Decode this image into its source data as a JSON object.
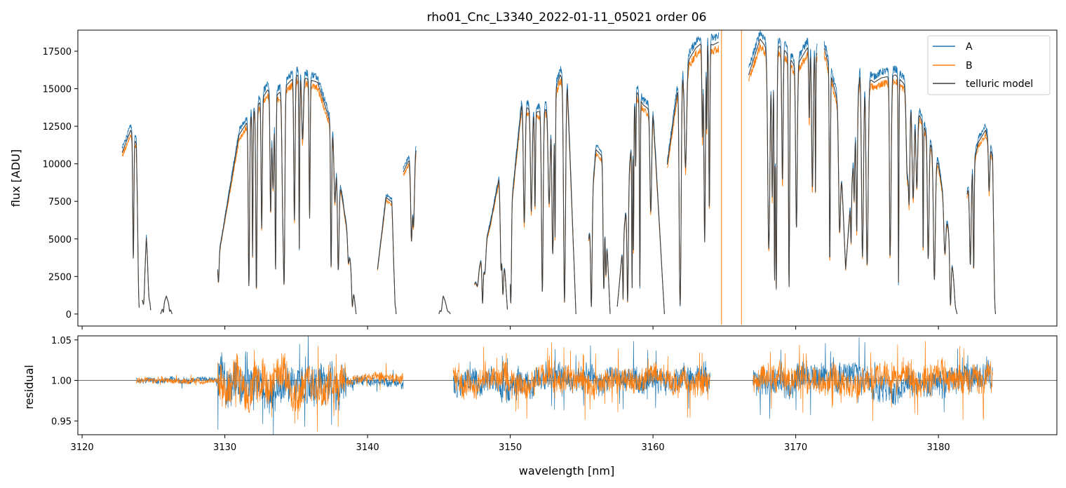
{
  "chart_data": [
    {
      "type": "line",
      "title": "rho01_Cnc_L3340_2022-01-11_05021  order 06",
      "xlabel": "",
      "ylabel": "flux [ADU]",
      "xlim": [
        3119.7,
        3188.3
      ],
      "ylim": [
        -800,
        18900
      ],
      "yticks": [
        0,
        2500,
        5000,
        7500,
        10000,
        12500,
        15000,
        17500
      ],
      "ytick_labels": [
        "0",
        "2500",
        "5000",
        "7500",
        "10000",
        "12500",
        "15000",
        "17500"
      ],
      "xticks": [
        3120,
        3130,
        3140,
        3150,
        3160,
        3170,
        3180
      ],
      "grid": false,
      "legend": "top-right",
      "series": [
        {
          "name": "A",
          "color": "#1f77b4",
          "lw": 0.9,
          "x_range": [
            3122.8,
            3184.9
          ]
        },
        {
          "name": "B",
          "color": "#ff7f0e",
          "lw": 0.9,
          "x_range": [
            3122.8,
            3185.0
          ]
        },
        {
          "name": "telluric model",
          "color": "#3f3f3f",
          "lw": 1.1,
          "x_range": [
            3122.8,
            3184.8
          ]
        }
      ],
      "continuum_segments": [
        {
          "x": [
            3122.8,
            3123.4,
            3123.8,
            3124.0
          ],
          "y": [
            10800,
            12300,
            11400,
            1500
          ]
        },
        {
          "x": [
            3124.2,
            3124.5,
            3124.8
          ],
          "y": [
            1200,
            5200,
            300
          ]
        },
        {
          "x": [
            3125.5,
            3125.9,
            3126.3
          ],
          "y": [
            0,
            1200,
            0
          ]
        },
        {
          "x": [
            3129.5,
            3131.0,
            3133.0,
            3133.5,
            3135.0,
            3136.5,
            3137.5,
            3138.5,
            3139.2
          ],
          "y": [
            3500,
            12000,
            15000,
            14500,
            16000,
            15500,
            12500,
            6000,
            0
          ]
        },
        {
          "x": [
            3140.7,
            3141.3,
            3141.7,
            3142.0
          ],
          "y": [
            3000,
            7800,
            7500,
            0
          ]
        },
        {
          "x": [
            3142.5,
            3143.0,
            3143.4
          ],
          "y": [
            9500,
            10500,
            11000
          ]
        },
        {
          "x": [
            3145.0,
            3145.3,
            3145.8
          ],
          "y": [
            0,
            1200,
            0
          ]
        },
        {
          "x": [
            3147.5,
            3148.6,
            3149.2,
            3149.8
          ],
          "y": [
            2000,
            6000,
            9000,
            300
          ]
        },
        {
          "x": [
            3150.0,
            3150.8,
            3151.8,
            3152.8,
            3153.5,
            3154.0,
            3154.6
          ],
          "y": [
            6500,
            14000,
            13500,
            13800,
            16000,
            15200,
            0
          ]
        },
        {
          "x": [
            3155.5,
            3156.0,
            3156.5,
            3157.0
          ],
          "y": [
            5000,
            11000,
            10500,
            0
          ]
        },
        {
          "x": [
            3157.5,
            3158.2,
            3158.8,
            3159.3,
            3160.0,
            3160.8
          ],
          "y": [
            500,
            8000,
            15000,
            14000,
            13500,
            0
          ]
        },
        {
          "x": [
            3161.0,
            3161.8,
            3162.5,
            3163.0,
            3163.6,
            3164.2,
            3164.6
          ],
          "y": [
            10000,
            15500,
            17000,
            17800,
            18300,
            18000,
            18200
          ]
        },
        {
          "x": [
            3166.7,
            3167.5,
            3168.2,
            3169.0,
            3170.0,
            3171.0,
            3171.5
          ],
          "y": [
            16000,
            18400,
            17500,
            18000,
            16500,
            18100,
            17400
          ]
        },
        {
          "x": [
            3172.0,
            3173.0,
            3173.5,
            3174.5,
            3175.5,
            3176.0,
            3177.0,
            3178.0,
            3179.0,
            3180.0,
            3180.8,
            3181.3
          ],
          "y": [
            17800,
            14000,
            3000,
            16200,
            15500,
            15800,
            16000,
            15000,
            12500,
            10000,
            5000,
            0
          ]
        },
        {
          "x": [
            3182.0,
            3182.8,
            3183.3,
            3183.8,
            3184.0
          ],
          "y": [
            8000,
            11500,
            12300,
            10500,
            0
          ]
        }
      ],
      "absorption_lines_note": ""
    },
    {
      "type": "line",
      "title": "",
      "xlabel": "wavelength [nm]",
      "ylabel": "residual",
      "xlim": [
        3119.7,
        3188.3
      ],
      "ylim": [
        0.933,
        1.055
      ],
      "yticks": [
        0.95,
        1.0,
        1.05
      ],
      "ytick_labels": [
        "0.95",
        "1.00",
        "1.05"
      ],
      "xticks": [
        3120,
        3130,
        3140,
        3150,
        3160,
        3170,
        3180
      ],
      "xtick_labels": [
        "3120",
        "3130",
        "3140",
        "3150",
        "3160",
        "3170",
        "3180"
      ],
      "reference_line": 1.0,
      "series": [
        {
          "name": "A",
          "color": "#1f77b4"
        },
        {
          "name": "B",
          "color": "#ff7f0e"
        }
      ],
      "residual_segments": [
        {
          "x_range": [
            3123.8,
            3129.5
          ],
          "amplitude": 0.008
        },
        {
          "x_range": [
            3129.5,
            3138.5
          ],
          "amplitude": 0.055
        },
        {
          "x_range": [
            3138.5,
            3142.5
          ],
          "amplitude": 0.015
        },
        {
          "x_range": [
            3146.0,
            3164.0
          ],
          "amplitude": 0.035
        },
        {
          "x_range": [
            3167.0,
            3183.8
          ],
          "amplitude": 0.04
        }
      ]
    }
  ],
  "legend": {
    "items": [
      {
        "label": "A",
        "color": "#1f77b4"
      },
      {
        "label": "B",
        "color": "#ff7f0e"
      },
      {
        "label": "telluric model",
        "color": "#3f3f3f"
      }
    ]
  }
}
